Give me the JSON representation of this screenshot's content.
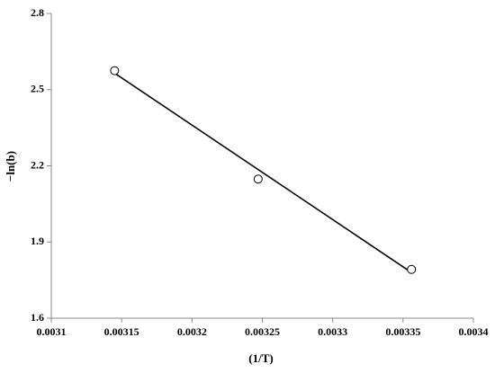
{
  "chart_data": {
    "type": "scatter",
    "x_label": "(1/T)",
    "y_label": "−ln(b)",
    "series": [
      {
        "x": [
          0.003145,
          0.003247,
          0.003356
        ],
        "values": [
          2.575,
          2.148,
          1.792
        ],
        "color": "#000000"
      }
    ],
    "fit": {
      "x": [
        0.003145,
        0.003356
      ],
      "values": [
        2.565,
        1.78
      ],
      "color": "#000000"
    },
    "xlim": [
      0.0031,
      0.0034
    ],
    "xticks": [
      0.0031,
      0.00315,
      0.0032,
      0.00325,
      0.0033,
      0.00335,
      0.0034
    ],
    "ylim": [
      1.6,
      2.8
    ],
    "yticks": [
      1.6,
      1.9,
      2.2,
      2.5,
      2.8
    ],
    "grid": false
  }
}
